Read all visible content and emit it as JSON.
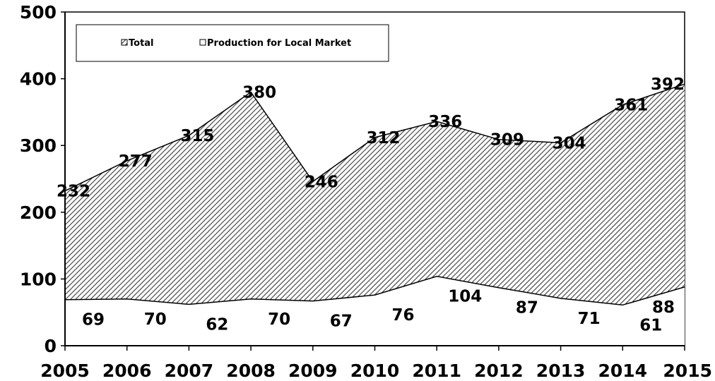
{
  "chart_data": {
    "type": "area",
    "categories": [
      "2005",
      "2006",
      "2007",
      "2008",
      "2009",
      "2010",
      "2011",
      "2012",
      "2013",
      "2014",
      "2015"
    ],
    "series": [
      {
        "name": "Total",
        "values": [
          232,
          277,
          315,
          380,
          246,
          312,
          336,
          309,
          304,
          361,
          392
        ],
        "fill": "hatched"
      },
      {
        "name": "Production for Local Market",
        "values": [
          69,
          70,
          62,
          70,
          67,
          76,
          104,
          87,
          71,
          61,
          88
        ],
        "fill": "#ffffff"
      }
    ],
    "y_ticks": [
      "0",
      "100",
      "200",
      "300",
      "400",
      "500"
    ],
    "ylim": [
      0,
      500
    ],
    "grid": false,
    "legend_position": "top-left",
    "title": "",
    "xlabel": "",
    "ylabel": ""
  }
}
